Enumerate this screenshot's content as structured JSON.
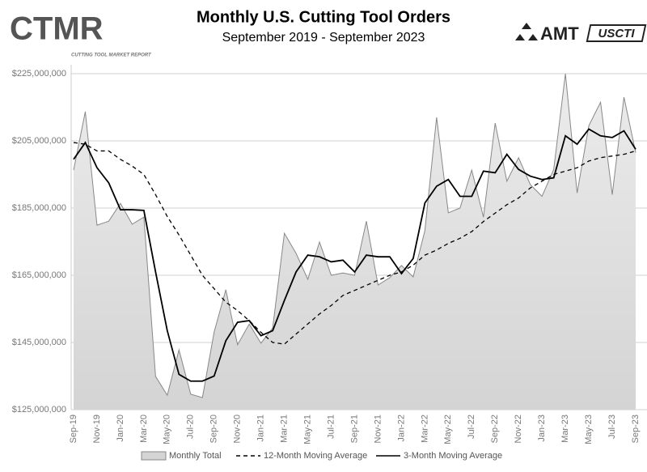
{
  "logos": {
    "left": "CTMR",
    "left_sub": "CUTTING TOOL MARKET REPORT",
    "right1": "AMT",
    "right2": "USCTI"
  },
  "chart_data": {
    "type": "line",
    "title": "Monthly U.S. Cutting Tool Orders",
    "subtitle": "September 2019 - September 2023",
    "categories": [
      "Sep-19",
      null,
      "Nov-19",
      null,
      "Jan-20",
      null,
      "Mar-20",
      null,
      "May-20",
      null,
      "Jul-20",
      null,
      "Sep-20",
      null,
      "Nov-20",
      null,
      "Jan-21",
      null,
      "Mar-21",
      null,
      "May-21",
      null,
      "Jul-21",
      null,
      "Sep-21",
      null,
      "Nov-21",
      null,
      "Jan-22",
      null,
      "Mar-22",
      null,
      "May-22",
      null,
      "Jul-22",
      null,
      "Sep-22",
      null,
      "Nov-22",
      null,
      "Jan-23",
      null,
      "Mar-23",
      null,
      "May-23",
      null,
      "Jul-23",
      null,
      "Sep-23"
    ],
    "ylim": [
      125000000,
      225000000
    ],
    "yticks": [
      {
        "value": 125000000,
        "label": "$125,000,000"
      },
      {
        "value": 145000000,
        "label": "$145,000,000"
      },
      {
        "value": 165000000,
        "label": "$165,000,000"
      },
      {
        "value": 185000000,
        "label": "$185,000,000"
      },
      {
        "value": 205000000,
        "label": "$205,000,000"
      },
      {
        "value": 225000000,
        "label": "$225,000,000"
      }
    ],
    "grid": true,
    "legend": "bottom",
    "series": [
      {
        "name": "Monthly Total",
        "style": "area",
        "color": "#d4d4d4",
        "stroke": "#888888",
        "values": [
          196300000,
          213700000,
          179900000,
          181100000,
          186400000,
          180200000,
          182300000,
          134900000,
          129300000,
          142800000,
          129600000,
          128600000,
          148100000,
          160700000,
          144300000,
          150500000,
          144800000,
          149300000,
          177500000,
          171500000,
          163800000,
          174900000,
          165000000,
          165700000,
          165000000,
          181100000,
          162100000,
          164300000,
          167900000,
          164500000,
          178300000,
          212000000,
          183600000,
          185000000,
          196300000,
          182300000,
          210300000,
          193000000,
          200000000,
          192000000,
          188500000,
          196500000,
          225000000,
          189500000,
          209500000,
          216500000,
          189000000,
          218000000,
          201500000
        ]
      },
      {
        "name": "12-Month Moving Average",
        "style": "dashed",
        "color": "#000000",
        "values": [
          204500000,
          204000000,
          202000000,
          202000000,
          199500000,
          197500000,
          195000000,
          189000000,
          182500000,
          177000000,
          171000000,
          165000000,
          161000000,
          157000000,
          154500000,
          151500000,
          148000000,
          145000000,
          144500000,
          147500000,
          150500000,
          153500000,
          156000000,
          159000000,
          160500000,
          162000000,
          163500000,
          165000000,
          166000000,
          168000000,
          171000000,
          172500000,
          174500000,
          176000000,
          178000000,
          181000000,
          183500000,
          186000000,
          188000000,
          191000000,
          193000000,
          195000000,
          196000000,
          197000000,
          199000000,
          200000000,
          200500000,
          201000000,
          202000000
        ]
      },
      {
        "name": "3-Month Moving Average",
        "style": "solid",
        "color": "#000000",
        "values": [
          199500000,
          204500000,
          197000000,
          192500000,
          184500000,
          184500000,
          184300000,
          166000000,
          148500000,
          135500000,
          133500000,
          133500000,
          135000000,
          145500000,
          151000000,
          151500000,
          147000000,
          148500000,
          157500000,
          166000000,
          171000000,
          170500000,
          169000000,
          169500000,
          166000000,
          171000000,
          170500000,
          170500000,
          165500000,
          170000000,
          186500000,
          191500000,
          193500000,
          188500000,
          188500000,
          196000000,
          195500000,
          201000000,
          196500000,
          194500000,
          193500000,
          194000000,
          206500000,
          204000000,
          208500000,
          206500000,
          206000000,
          208000000,
          202500000
        ]
      }
    ]
  }
}
